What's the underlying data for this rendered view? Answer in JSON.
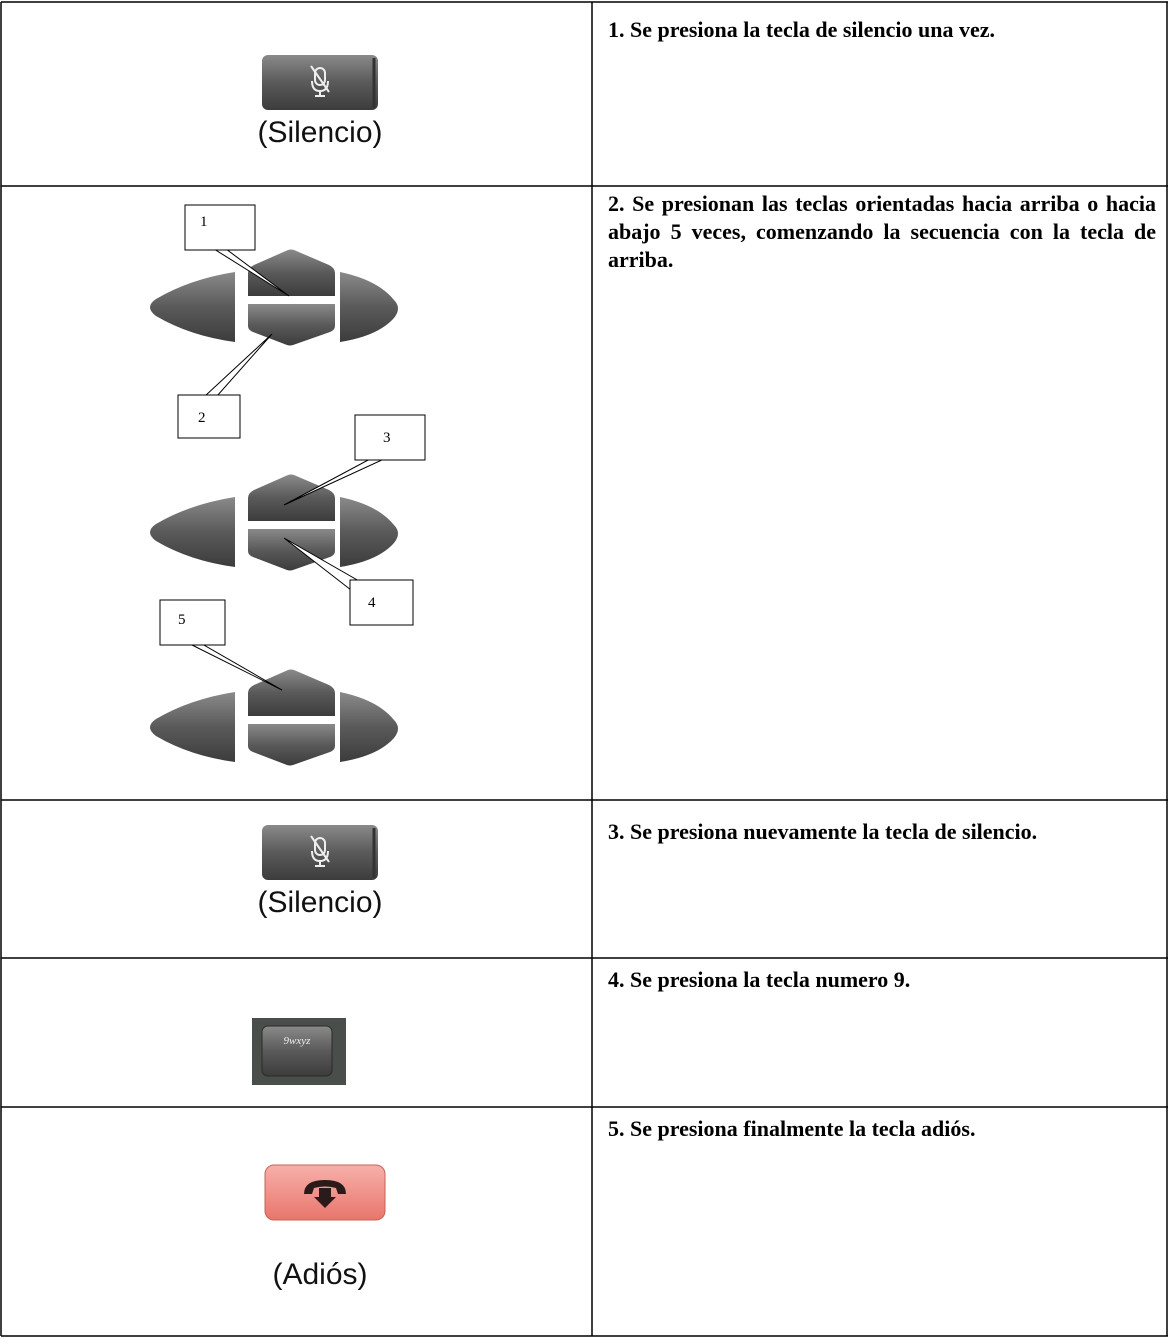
{
  "table": {
    "rows": [
      {
        "key_label": "(Silencio)",
        "step": "1. Se presiona la tecla de silencio una vez."
      },
      {
        "callouts": [
          "1",
          "2",
          "3",
          "4",
          "5"
        ],
        "step": "2. Se presionan las teclas orientadas hacia arriba o hacia abajo 5 veces, comenzando la secuencia con la tecla de arriba."
      },
      {
        "key_label": "(Silencio)",
        "step": "3. Se presiona nuevamente la tecla de silencio."
      },
      {
        "key_label": "9wxyz",
        "step": "4. Se presiona la tecla numero 9."
      },
      {
        "key_label": "(Adiós)",
        "step": "5. Se presiona finalmente la tecla adiós."
      }
    ]
  }
}
